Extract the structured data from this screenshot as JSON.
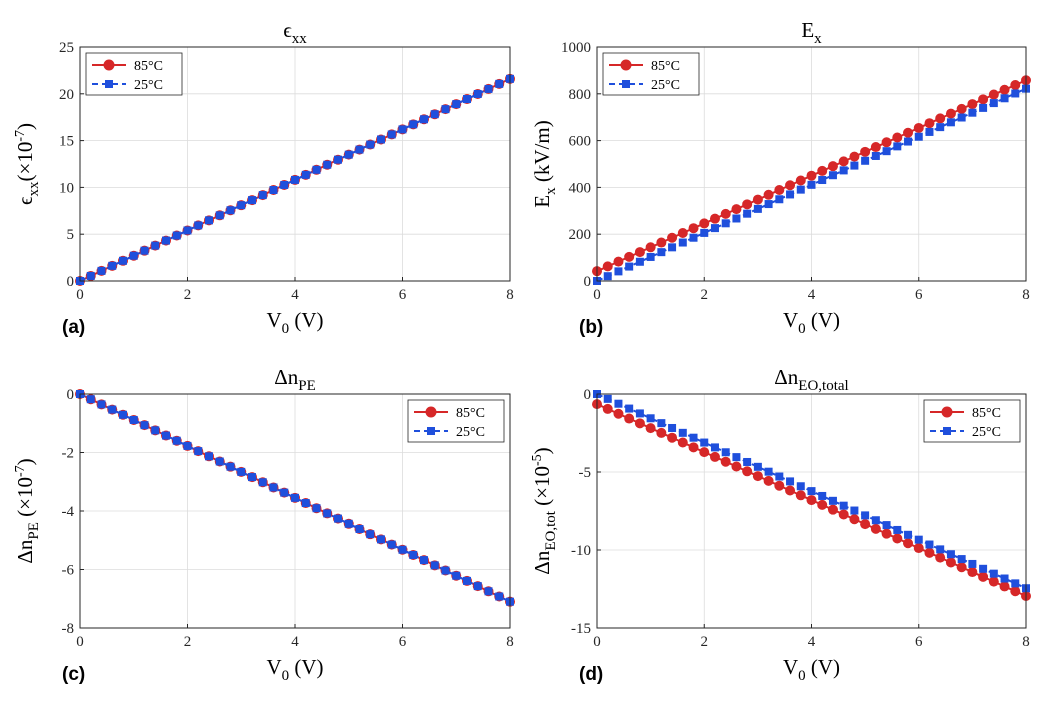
{
  "figure": {
    "panels": [
      {
        "title_main": "ϵ",
        "title_sub": "xx",
        "panel_label": "(a)",
        "ylabel_main": "ϵ",
        "ylabel_sub": "xx",
        "ylabel_unit": "(×10",
        "ylabel_exp": "-7",
        "ylabel_close": ")",
        "xlabel_main": "V",
        "xlabel_sub": "0",
        "xlabel_unit": " (V)"
      },
      {
        "title_main": "E",
        "title_sub": "x",
        "panel_label": "(b)",
        "ylabel_main": "E",
        "ylabel_sub": "x",
        "ylabel_unit": " (kV/m)",
        "ylabel_exp": "",
        "ylabel_close": "",
        "xlabel_main": "V",
        "xlabel_sub": "0",
        "xlabel_unit": " (V)"
      },
      {
        "title_main": "Δn",
        "title_sub": "PE",
        "panel_label": "(c)",
        "ylabel_main": "Δn",
        "ylabel_sub": "PE",
        "ylabel_unit": " (×10",
        "ylabel_exp": "-7",
        "ylabel_close": ")",
        "xlabel_main": "V",
        "xlabel_sub": "0",
        "xlabel_unit": " (V)"
      },
      {
        "title_main": "Δn",
        "title_sub": "EO,total",
        "panel_label": "(d)",
        "ylabel_main": "Δn",
        "ylabel_sub": "EO,tot",
        "ylabel_unit": " (×10",
        "ylabel_exp": "-5",
        "ylabel_close": ")",
        "xlabel_main": "V",
        "xlabel_sub": "0",
        "xlabel_unit": " (V)"
      }
    ]
  },
  "chart_data": [
    {
      "type": "line",
      "x": [
        0,
        0.2,
        0.4,
        0.6,
        0.8,
        1,
        1.2,
        1.4,
        1.6,
        1.8,
        2,
        2.2,
        2.4,
        2.6,
        2.8,
        3,
        3.2,
        3.4,
        3.6,
        3.8,
        4,
        4.2,
        4.4,
        4.6,
        4.8,
        5,
        5.2,
        5.4,
        5.6,
        5.8,
        6,
        6.2,
        6.4,
        6.6,
        6.8,
        7,
        7.2,
        7.4,
        7.6,
        7.8,
        8
      ],
      "series": [
        {
          "name": "85°C",
          "color": "#d62728",
          "marker": "circle",
          "line": "solid",
          "start": 0,
          "end": 21.6
        },
        {
          "name": "25°C",
          "color": "#1f4fdc",
          "marker": "square",
          "line": "dashed",
          "start": 0,
          "end": 21.6
        }
      ],
      "xlim": [
        0,
        8
      ],
      "ylim": [
        0,
        25
      ],
      "xticks": [
        "0",
        "2",
        "4",
        "6",
        "8"
      ],
      "yticks": [
        "0",
        "5",
        "10",
        "15",
        "20",
        "25"
      ],
      "grid": true,
      "legend": "top-left"
    },
    {
      "type": "line",
      "x": [
        0,
        0.2,
        0.4,
        0.6,
        0.8,
        1,
        1.2,
        1.4,
        1.6,
        1.8,
        2,
        2.2,
        2.4,
        2.6,
        2.8,
        3,
        3.2,
        3.4,
        3.6,
        3.8,
        4,
        4.2,
        4.4,
        4.6,
        4.8,
        5,
        5.2,
        5.4,
        5.6,
        5.8,
        6,
        6.2,
        6.4,
        6.6,
        6.8,
        7,
        7.2,
        7.4,
        7.6,
        7.8,
        8
      ],
      "series": [
        {
          "name": "85°C",
          "color": "#d62728",
          "marker": "circle",
          "line": "solid",
          "start": 42,
          "end": 858
        },
        {
          "name": "25°C",
          "color": "#1f4fdc",
          "marker": "square",
          "line": "dashed",
          "start": 0,
          "end": 822
        }
      ],
      "xlim": [
        0,
        8
      ],
      "ylim": [
        0,
        1000
      ],
      "xticks": [
        "0",
        "2",
        "4",
        "6",
        "8"
      ],
      "yticks": [
        "0",
        "200",
        "400",
        "600",
        "800",
        "1000"
      ],
      "grid": true,
      "legend": "top-left"
    },
    {
      "type": "line",
      "x": [
        0,
        0.2,
        0.4,
        0.6,
        0.8,
        1,
        1.2,
        1.4,
        1.6,
        1.8,
        2,
        2.2,
        2.4,
        2.6,
        2.8,
        3,
        3.2,
        3.4,
        3.6,
        3.8,
        4,
        4.2,
        4.4,
        4.6,
        4.8,
        5,
        5.2,
        5.4,
        5.6,
        5.8,
        6,
        6.2,
        6.4,
        6.6,
        6.8,
        7,
        7.2,
        7.4,
        7.6,
        7.8,
        8
      ],
      "series": [
        {
          "name": "85°C",
          "color": "#d62728",
          "marker": "circle",
          "line": "solid",
          "start": 0,
          "end": -7.1
        },
        {
          "name": "25°C",
          "color": "#1f4fdc",
          "marker": "square",
          "line": "dashed",
          "start": 0,
          "end": -7.1
        }
      ],
      "xlim": [
        0,
        8
      ],
      "ylim": [
        -8,
        0
      ],
      "xticks": [
        "0",
        "2",
        "4",
        "6",
        "8"
      ],
      "yticks": [
        "-8",
        "-6",
        "-4",
        "-2",
        "0"
      ],
      "grid": true,
      "legend": "top-right"
    },
    {
      "type": "line",
      "x": [
        0,
        0.2,
        0.4,
        0.6,
        0.8,
        1,
        1.2,
        1.4,
        1.6,
        1.8,
        2,
        2.2,
        2.4,
        2.6,
        2.8,
        3,
        3.2,
        3.4,
        3.6,
        3.8,
        4,
        4.2,
        4.4,
        4.6,
        4.8,
        5,
        5.2,
        5.4,
        5.6,
        5.8,
        6,
        6.2,
        6.4,
        6.6,
        6.8,
        7,
        7.2,
        7.4,
        7.6,
        7.8,
        8
      ],
      "series": [
        {
          "name": "85°C",
          "color": "#d62728",
          "marker": "circle",
          "line": "solid",
          "start": -0.65,
          "end": -12.95
        },
        {
          "name": "25°C",
          "color": "#1f4fdc",
          "marker": "square",
          "line": "dashed",
          "start": 0,
          "end": -12.45
        }
      ],
      "xlim": [
        0,
        8
      ],
      "ylim": [
        -15,
        0
      ],
      "xticks": [
        "0",
        "2",
        "4",
        "6",
        "8"
      ],
      "yticks": [
        "-15",
        "-10",
        "-5",
        "0"
      ],
      "grid": true,
      "legend": "top-right"
    }
  ]
}
